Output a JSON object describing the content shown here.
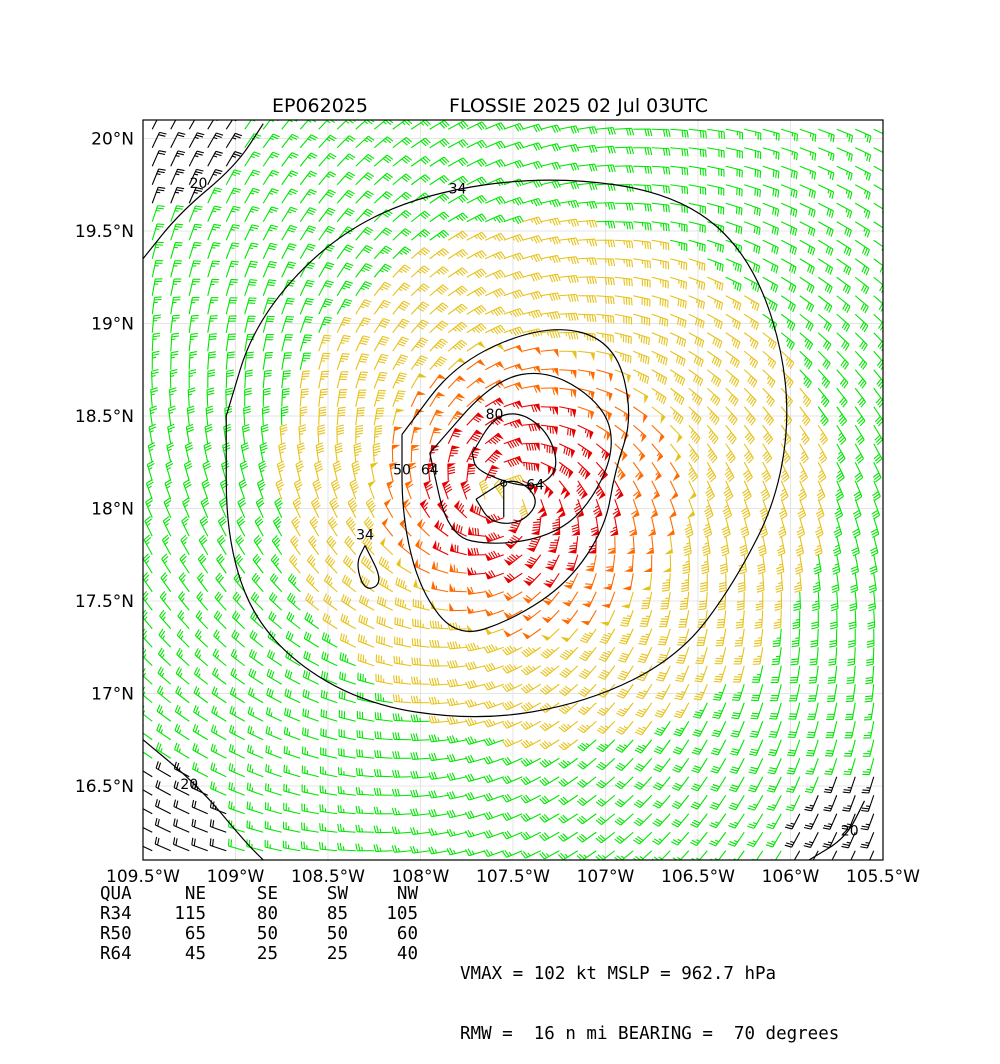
{
  "title": {
    "left": "EP062025",
    "right": "FLOSSIE 2025 02 Jul 03UTC"
  },
  "chart_data": {
    "type": "wind-barb map",
    "xlim": [
      -109.5,
      -105.5
    ],
    "ylim": [
      16.1,
      20.1
    ],
    "x_ticks": [
      {
        "value": -109.5,
        "label": "109.5°W"
      },
      {
        "value": -109.0,
        "label": "109°W"
      },
      {
        "value": -108.5,
        "label": "108.5°W"
      },
      {
        "value": -108.0,
        "label": "108°W"
      },
      {
        "value": -107.5,
        "label": "107.5°W"
      },
      {
        "value": -107.0,
        "label": "107°W"
      },
      {
        "value": -106.5,
        "label": "106.5°W"
      },
      {
        "value": -106.0,
        "label": "106°W"
      },
      {
        "value": -105.5,
        "label": "105.5°W"
      }
    ],
    "y_ticks": [
      {
        "value": 20.0,
        "label": "20°N"
      },
      {
        "value": 19.5,
        "label": "19.5°N"
      },
      {
        "value": 19.0,
        "label": "19°N"
      },
      {
        "value": 18.5,
        "label": "18.5°N"
      },
      {
        "value": 18.0,
        "label": "18°N"
      },
      {
        "value": 17.5,
        "label": "17.5°N"
      },
      {
        "value": 17.0,
        "label": "17°N"
      },
      {
        "value": 16.5,
        "label": "16.5°N"
      }
    ],
    "grid": true,
    "center": {
      "lon": -107.55,
      "lat": 18.05
    },
    "speed_colors": [
      {
        "min": 0,
        "max": 34,
        "color": "#000000"
      },
      {
        "min": 20,
        "max": 34,
        "color": "#00e600"
      },
      {
        "min": 34,
        "max": 50,
        "color": "#e6c21a"
      },
      {
        "min": 50,
        "max": 64,
        "color": "#ff6a00"
      },
      {
        "min": 64,
        "max": 200,
        "color": "#e60000"
      }
    ],
    "contours": [
      {
        "label": "20",
        "points": [
          [
            -109.5,
            19.35
          ],
          [
            -109.3,
            19.6
          ],
          [
            -109.0,
            19.85
          ],
          [
            -108.85,
            20.08
          ]
        ],
        "label_at": [
          -109.2,
          19.75
        ]
      },
      {
        "label": "20",
        "points": [
          [
            -109.5,
            16.75
          ],
          [
            -109.2,
            16.5
          ],
          [
            -108.95,
            16.2
          ],
          [
            -108.85,
            16.1
          ]
        ],
        "label_at": [
          -109.25,
          16.5
        ]
      },
      {
        "label": "20",
        "points": [
          [
            -105.9,
            16.1
          ],
          [
            -105.7,
            16.22
          ],
          [
            -105.6,
            16.42
          ]
        ],
        "label_at": [
          -105.68,
          16.25
        ]
      },
      {
        "label": "34",
        "points": [
          [
            -109.05,
            18.5
          ],
          [
            -108.9,
            19.0
          ],
          [
            -108.5,
            19.45
          ],
          [
            -108.0,
            19.7
          ],
          [
            -107.3,
            19.8
          ],
          [
            -106.6,
            19.7
          ],
          [
            -106.2,
            19.35
          ],
          [
            -106.0,
            18.7
          ],
          [
            -106.05,
            18.1
          ],
          [
            -106.3,
            17.6
          ],
          [
            -106.6,
            17.2
          ],
          [
            -107.1,
            16.95
          ],
          [
            -107.7,
            16.85
          ],
          [
            -108.35,
            16.95
          ],
          [
            -108.85,
            17.3
          ],
          [
            -109.05,
            17.8
          ],
          [
            -109.05,
            18.5
          ]
        ],
        "label_at": [
          -107.8,
          19.72
        ]
      },
      {
        "label": "34",
        "points": [
          [
            -108.3,
            17.8
          ],
          [
            -108.2,
            17.6
          ],
          [
            -108.3,
            17.55
          ],
          [
            -108.35,
            17.7
          ],
          [
            -108.3,
            17.8
          ]
        ],
        "label_at": [
          -108.3,
          17.85
        ]
      },
      {
        "label": "50",
        "points": [
          [
            -108.1,
            18.4
          ],
          [
            -107.8,
            18.8
          ],
          [
            -107.3,
            19.0
          ],
          [
            -106.95,
            18.9
          ],
          [
            -106.85,
            18.5
          ],
          [
            -106.95,
            18.2
          ],
          [
            -107.0,
            17.9
          ],
          [
            -107.2,
            17.6
          ],
          [
            -107.5,
            17.4
          ],
          [
            -107.8,
            17.3
          ],
          [
            -108.0,
            17.55
          ],
          [
            -108.1,
            17.95
          ],
          [
            -108.1,
            18.4
          ]
        ],
        "label_at": [
          -108.1,
          18.2
        ]
      },
      {
        "label": "64",
        "points": [
          [
            -107.95,
            18.3
          ],
          [
            -107.6,
            18.7
          ],
          [
            -107.3,
            18.75
          ],
          [
            -107.0,
            18.55
          ],
          [
            -106.95,
            18.3
          ],
          [
            -107.1,
            18.0
          ],
          [
            -107.3,
            17.85
          ],
          [
            -107.6,
            17.8
          ],
          [
            -107.85,
            17.85
          ],
          [
            -107.95,
            18.3
          ]
        ],
        "label_at": [
          -107.95,
          18.2
        ]
      },
      {
        "label": "64",
        "points": [
          [
            -107.7,
            18.05
          ],
          [
            -107.5,
            18.18
          ],
          [
            -107.35,
            18.05
          ],
          [
            -107.45,
            17.92
          ],
          [
            -107.62,
            17.92
          ],
          [
            -107.7,
            18.05
          ]
        ],
        "label_at": [
          -107.38,
          18.12
        ]
      },
      {
        "label": "80",
        "points": [
          [
            -107.72,
            18.3
          ],
          [
            -107.6,
            18.5
          ],
          [
            -107.45,
            18.52
          ],
          [
            -107.3,
            18.4
          ],
          [
            -107.25,
            18.2
          ],
          [
            -107.4,
            18.1
          ],
          [
            -107.7,
            18.2
          ],
          [
            -107.72,
            18.3
          ]
        ],
        "label_at": [
          -107.6,
          18.5
        ]
      }
    ]
  },
  "radii_table": {
    "header": [
      "QUA",
      "NE",
      "SE",
      "SW",
      "NW"
    ],
    "rows": [
      [
        "R34",
        "115",
        "80",
        "85",
        "105"
      ],
      [
        "R50",
        "65",
        "50",
        "50",
        "60"
      ],
      [
        "R64",
        "45",
        "25",
        "25",
        "40"
      ]
    ]
  },
  "stats": {
    "line1": "VMAX = 102 kt MSLP = 962.7 hPa",
    "line2": "RMW =  16 n mi BEARING =  70 degrees"
  }
}
